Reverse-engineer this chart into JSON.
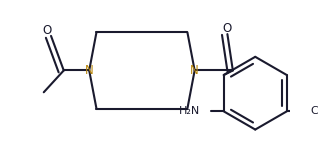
{
  "bg_color": "#ffffff",
  "bond_color": "#1a1a2e",
  "n_color": "#b8860b",
  "line_width": 1.5,
  "figsize": [
    3.18,
    1.5
  ],
  "dpi": 100,
  "xlim": [
    0,
    3.18
  ],
  "ylim": [
    0,
    1.5
  ]
}
